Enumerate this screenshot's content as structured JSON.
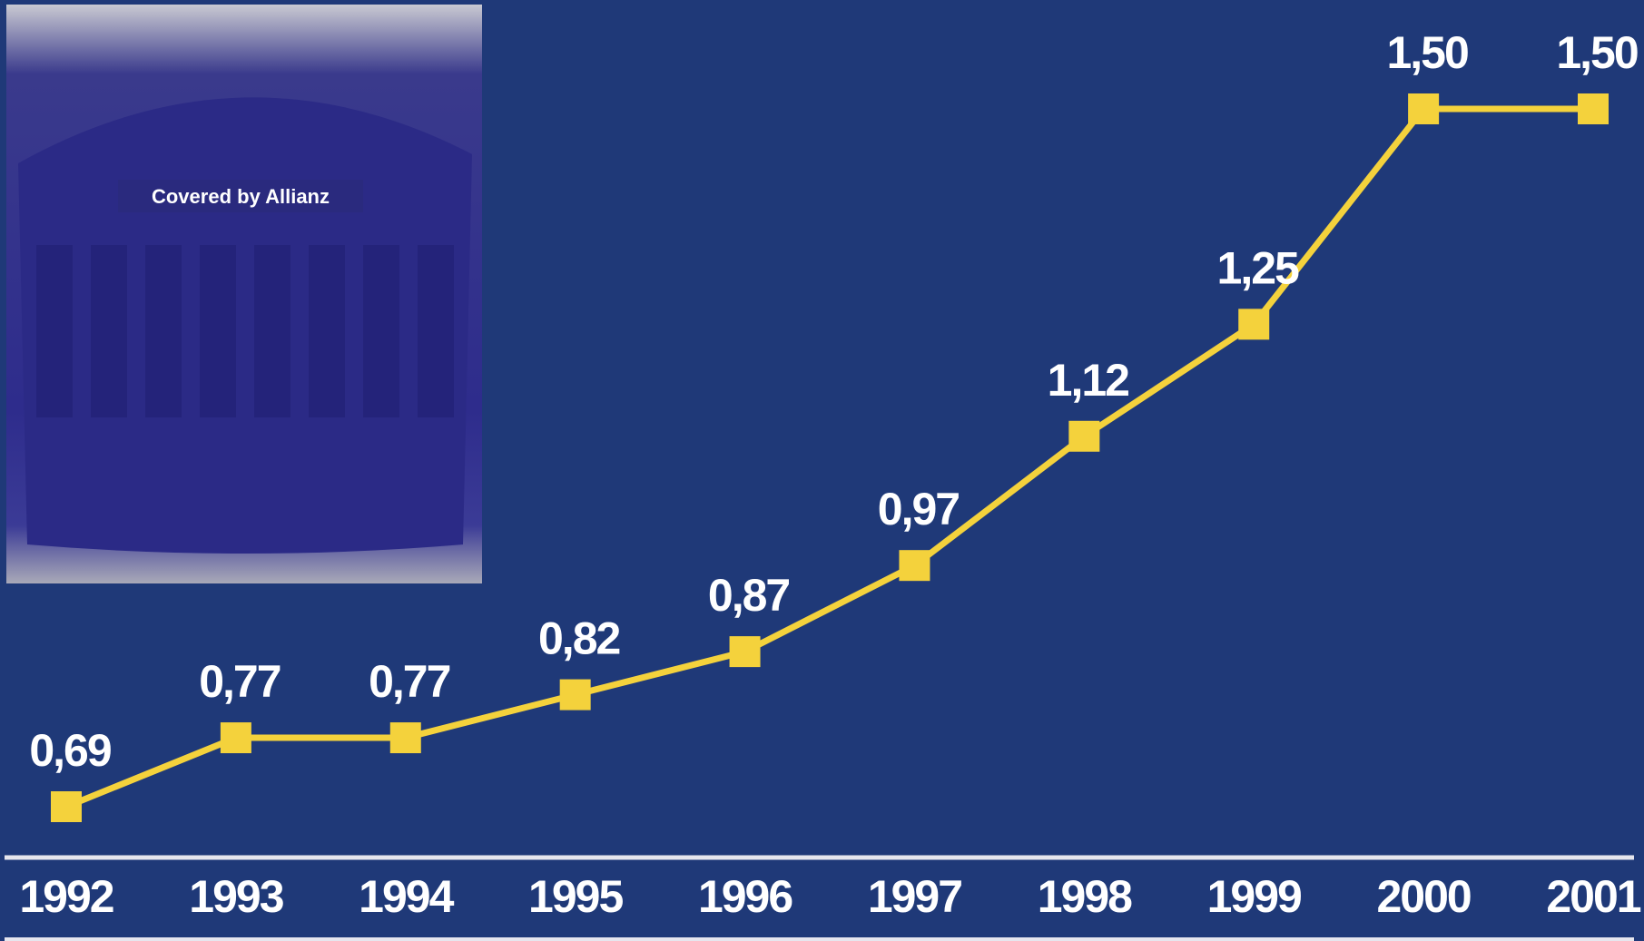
{
  "chart_data": {
    "type": "line",
    "annotation": "Covered by Allianz",
    "categories": [
      "1992",
      "1993",
      "1994",
      "1995",
      "1996",
      "1997",
      "1998",
      "1999",
      "2000",
      "2001"
    ],
    "series": [
      {
        "color": "#f4d23c",
        "values": [
          0.69,
          0.77,
          0.77,
          0.82,
          0.87,
          0.97,
          1.12,
          1.25,
          1.5,
          1.5
        ],
        "value_labels": [
          "0,69",
          "0,77",
          "0,77",
          "0,82",
          "0,87",
          "0,97",
          "1,12",
          "1,25",
          "1,50",
          "1,50"
        ]
      }
    ]
  }
}
